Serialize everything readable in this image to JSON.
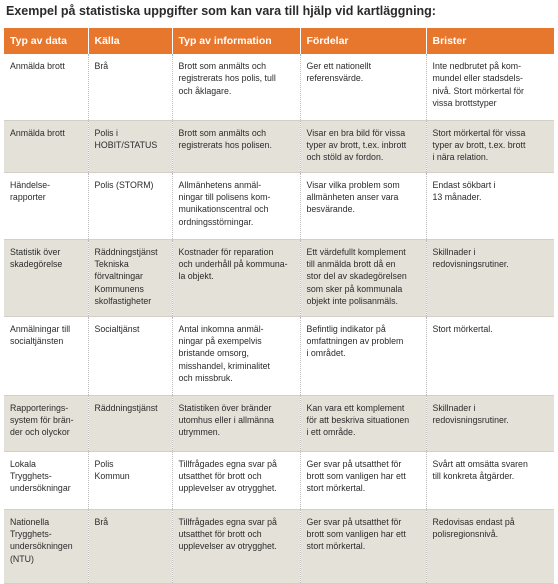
{
  "title": "Exempel på statistiska uppgifter som kan vara till hjälp vid kartläggning:",
  "colors": {
    "header_bg": "#e8772e",
    "row_alt_bg": "#e4e1d8"
  },
  "columns": [
    "Typ av data",
    "Källa",
    "Typ av information",
    "Fördelar",
    "Brister"
  ],
  "rows": [
    {
      "typ": [
        "Anmälda brott"
      ],
      "kalla": [
        "Brå"
      ],
      "info": [
        "Brott som anmälts och",
        "registrerats hos polis, tull",
        "och åklagare."
      ],
      "fordelar": [
        "Ger ett nationellt",
        "referensvärde."
      ],
      "brister": [
        "Inte nedbrutet på kom-",
        "mundel eller stadsdels-",
        "nivå. Stort mörkertal för",
        "vissa brottstyper"
      ]
    },
    {
      "typ": [
        "Anmälda brott"
      ],
      "kalla": [
        "Polis i",
        "HOBIT/STATUS"
      ],
      "info": [
        "Brott som anmälts och",
        "registrerats hos polisen."
      ],
      "fordelar": [
        "Visar en bra bild för vissa",
        "typer av brott, t.ex. inbrott",
        "och stöld av fordon."
      ],
      "brister": [
        "Stort mörkertal för vissa",
        "typer av brott, t.ex. brott",
        "i nära relation."
      ]
    },
    {
      "typ": [
        "Händelse-",
        "rapporter"
      ],
      "kalla": [
        "Polis (STORM)"
      ],
      "info": [
        "Allmänhetens anmäl-",
        "ningar till polisens kom-",
        "munikationscentral och",
        "ordningsstörningar."
      ],
      "fordelar": [
        "Visar vilka problem som",
        "allmänheten anser vara",
        "besvärande."
      ],
      "brister": [
        "Endast sökbart i",
        "13 månader."
      ]
    },
    {
      "typ": [
        "Statistik över",
        "skadegörelse"
      ],
      "kalla": [
        "Räddningstjänst",
        "Tekniska",
        "förvaltningar",
        "Kommunens",
        "skolfastigheter"
      ],
      "info": [
        "Kostnader för reparation",
        "och underhåll på kommuna-",
        "la objekt."
      ],
      "fordelar": [
        "Ett värdefullt komplement",
        "till anmälda brott då en",
        "stor del av skadegörelsen",
        "som sker på kommunala",
        "objekt inte polisanmäls."
      ],
      "brister": [
        "Skillnader i",
        "redovisningsrutiner."
      ]
    },
    {
      "typ": [
        "Anmälningar till",
        "socialtjänsten"
      ],
      "kalla": [
        "Socialtjänst"
      ],
      "info": [
        "Antal inkomna anmäl-",
        "ningar på exempelvis",
        "bristande omsorg,",
        "misshandel, kriminalitet",
        "och missbruk."
      ],
      "fordelar": [
        "Befintlig indikator på",
        "omfattningen av problem",
        "i området."
      ],
      "brister": [
        "Stort mörkertal."
      ]
    },
    {
      "typ": [
        "Rapporterings-",
        "system för brän-",
        "der och olyckor"
      ],
      "kalla": [
        "Räddningstjänst"
      ],
      "info": [
        "Statistiken över bränder",
        "utomhus eller i allmänna",
        "utrymmen."
      ],
      "fordelar": [
        "Kan vara ett komplement",
        "för att beskriva situationen",
        "i ett område."
      ],
      "brister": [
        "Skillnader i",
        "redovisningsrutiner."
      ]
    },
    {
      "typ": [
        "Lokala",
        "Trygghets-",
        "undersökningar"
      ],
      "kalla": [
        "Polis",
        "Kommun"
      ],
      "info": [
        "Tillfrågades egna svar på",
        "utsatthet för brott och",
        "upplevelser av otrygghet."
      ],
      "fordelar": [
        "Ger svar på utsatthet för",
        "brott som vanligen har ett",
        "stort mörkertal."
      ],
      "brister": [
        "Svårt att omsätta svaren",
        "till konkreta åtgärder."
      ]
    },
    {
      "typ": [
        "Nationella",
        "Trygghets-",
        "undersökningen",
        "(NTU)"
      ],
      "kalla": [
        "Brå"
      ],
      "info": [
        "Tillfrågades egna svar på",
        "utsatthet för brott och",
        "upplevelser av otrygghet."
      ],
      "fordelar": [
        "Ger svar på utsatthet för",
        "brott som vanligen har ett",
        "stort mörkertal."
      ],
      "brister": [
        "Redovisas endast på",
        "polisregionsnivå."
      ]
    }
  ]
}
